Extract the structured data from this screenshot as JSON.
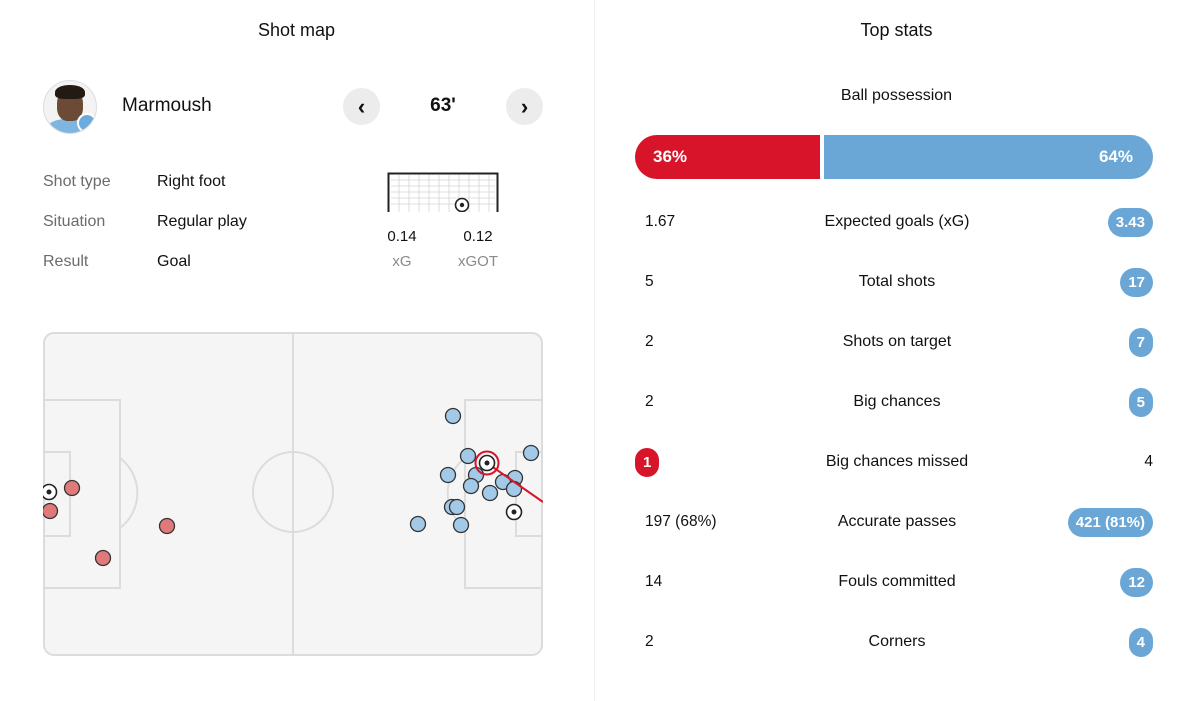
{
  "shot_map": {
    "title": "Shot map",
    "player_name": "Marmoush",
    "minute": "63'",
    "prev_icon": "‹",
    "next_icon": "›",
    "details": [
      {
        "label": "Shot type",
        "value": "Right foot"
      },
      {
        "label": "Situation",
        "value": "Regular play"
      },
      {
        "label": "Result",
        "value": "Goal"
      }
    ],
    "xg_value": "0.14",
    "xg_label": "xG",
    "xgot_value": "0.12",
    "xgot_label": "xGOT"
  },
  "colors": {
    "home": "#d7142a",
    "away": "#6aa6d6",
    "home_shot": "#e07a7a",
    "away_shot": "#a3c9e8",
    "pitch_bg": "#f5f5f5",
    "pitch_line": "#dcdcdc"
  },
  "top_stats": {
    "title": "Top stats",
    "possession_label": "Ball possession",
    "possession_home": "36%",
    "possession_away": "64%",
    "possession_home_pct": 36,
    "rows": [
      {
        "label": "Expected goals (xG)",
        "home": "1.67",
        "away": "3.43",
        "highlight": "away"
      },
      {
        "label": "Total shots",
        "home": "5",
        "away": "17",
        "highlight": "away"
      },
      {
        "label": "Shots on target",
        "home": "2",
        "away": "7",
        "highlight": "away"
      },
      {
        "label": "Big chances",
        "home": "2",
        "away": "5",
        "highlight": "away"
      },
      {
        "label": "Big chances missed",
        "home": "1",
        "away": "4",
        "highlight": "home"
      },
      {
        "label": "Accurate passes",
        "home": "197 (68%)",
        "away": "421 (81%)",
        "highlight": "away"
      },
      {
        "label": "Fouls committed",
        "home": "14",
        "away": "12",
        "highlight": "away"
      },
      {
        "label": "Corners",
        "home": "2",
        "away": "4",
        "highlight": "away"
      }
    ]
  }
}
